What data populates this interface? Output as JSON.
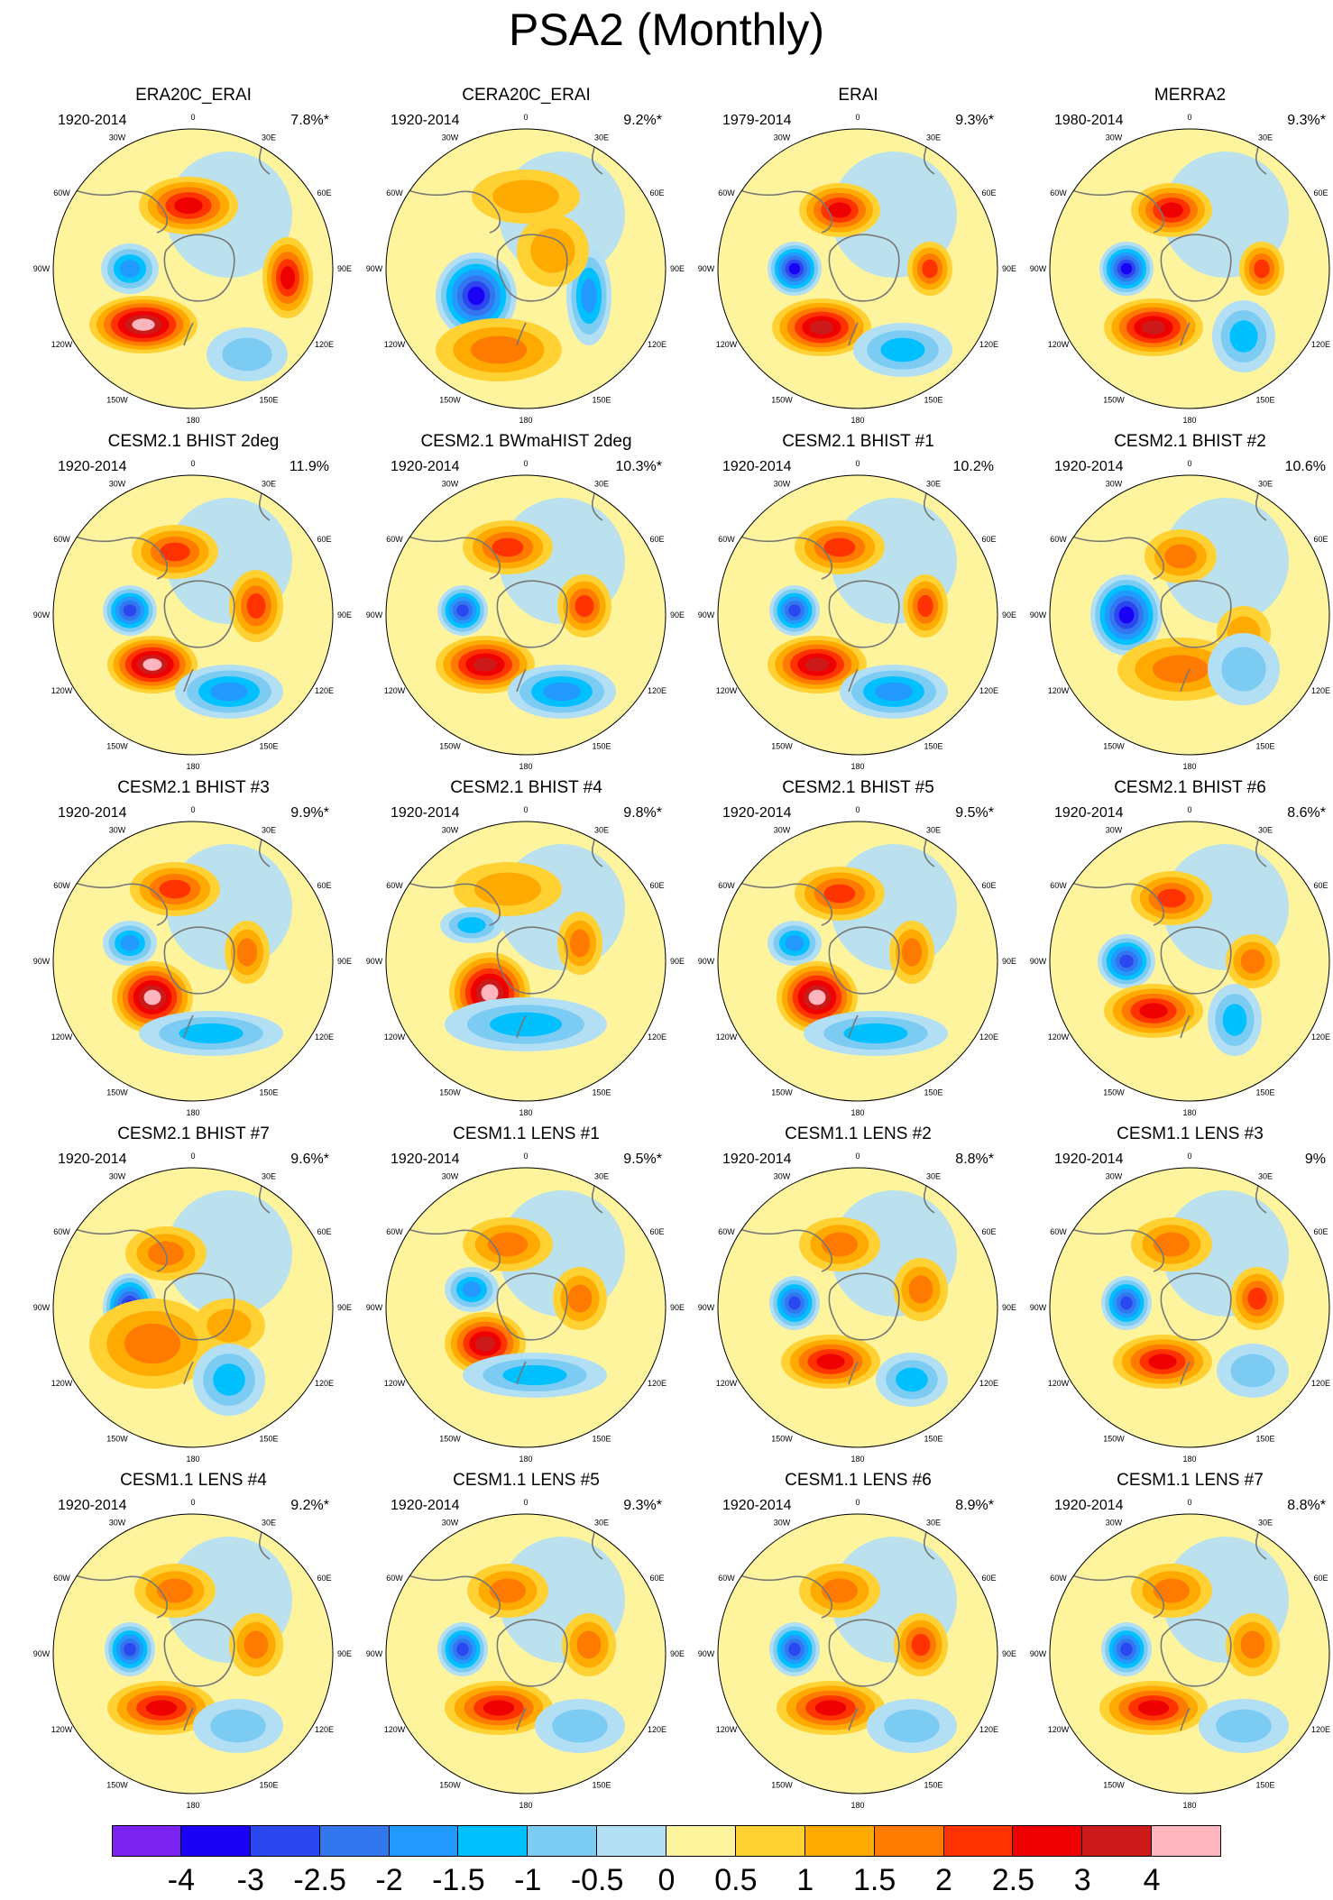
{
  "title": "PSA2 (Monthly)",
  "lon_labels": [
    "0",
    "30E",
    "60E",
    "90E",
    "120E",
    "150E",
    "180",
    "150W",
    "120W",
    "90W",
    "60W",
    "30W"
  ],
  "panels": [
    {
      "title": "ERA20C_ERAI",
      "years": "1920-2014",
      "pct": "7.8%*"
    },
    {
      "title": "CERA20C_ERAI",
      "years": "1920-2014",
      "pct": "9.2%*"
    },
    {
      "title": "ERAI",
      "years": "1979-2014",
      "pct": "9.3%*"
    },
    {
      "title": "MERRA2",
      "years": "1980-2014",
      "pct": "9.3%*"
    },
    {
      "title": "CESM2.1 BHIST 2deg",
      "years": "1920-2014",
      "pct": "11.9%"
    },
    {
      "title": "CESM2.1 BWmaHIST 2deg",
      "years": "1920-2014",
      "pct": "10.3%*"
    },
    {
      "title": "CESM2.1 BHIST #1",
      "years": "1920-2014",
      "pct": "10.2%"
    },
    {
      "title": "CESM2.1 BHIST #2",
      "years": "1920-2014",
      "pct": "10.6%"
    },
    {
      "title": "CESM2.1 BHIST #3",
      "years": "1920-2014",
      "pct": "9.9%*"
    },
    {
      "title": "CESM2.1 BHIST #4",
      "years": "1920-2014",
      "pct": "9.8%*"
    },
    {
      "title": "CESM2.1 BHIST #5",
      "years": "1920-2014",
      "pct": "9.5%*"
    },
    {
      "title": "CESM2.1 BHIST #6",
      "years": "1920-2014",
      "pct": "8.6%*"
    },
    {
      "title": "CESM2.1 BHIST #7",
      "years": "1920-2014",
      "pct": "9.6%*"
    },
    {
      "title": "CESM1.1 LENS #1",
      "years": "1920-2014",
      "pct": "9.5%*"
    },
    {
      "title": "CESM1.1 LENS #2",
      "years": "1920-2014",
      "pct": "8.8%*"
    },
    {
      "title": "CESM1.1 LENS #3",
      "years": "1920-2014",
      "pct": "9%"
    },
    {
      "title": "CESM1.1 LENS #4",
      "years": "1920-2014",
      "pct": "9.2%*"
    },
    {
      "title": "CESM1.1 LENS #5",
      "years": "1920-2014",
      "pct": "9.3%*"
    },
    {
      "title": "CESM1.1 LENS #6",
      "years": "1920-2014",
      "pct": "8.9%*"
    },
    {
      "title": "CESM1.1 LENS #7",
      "years": "1920-2014",
      "pct": "8.8%*"
    }
  ],
  "colorbar": {
    "labels": [
      "-4",
      "-3",
      "-2.5",
      "-2",
      "-1.5",
      "-1",
      "-0.5",
      "0",
      "0.5",
      "1",
      "1.5",
      "2",
      "2.5",
      "3",
      "4"
    ],
    "colors": [
      "#7b22f0",
      "#1a00f5",
      "#2b48f0",
      "#3377ee",
      "#2299ff",
      "#00c0ff",
      "#7ccbf2",
      "#b3dff5",
      "#fff49e",
      "#ffd133",
      "#ffaa00",
      "#ff7a00",
      "#ff3300",
      "#ee0000",
      "#cc1a1a",
      "#ffb5bd"
    ]
  }
}
